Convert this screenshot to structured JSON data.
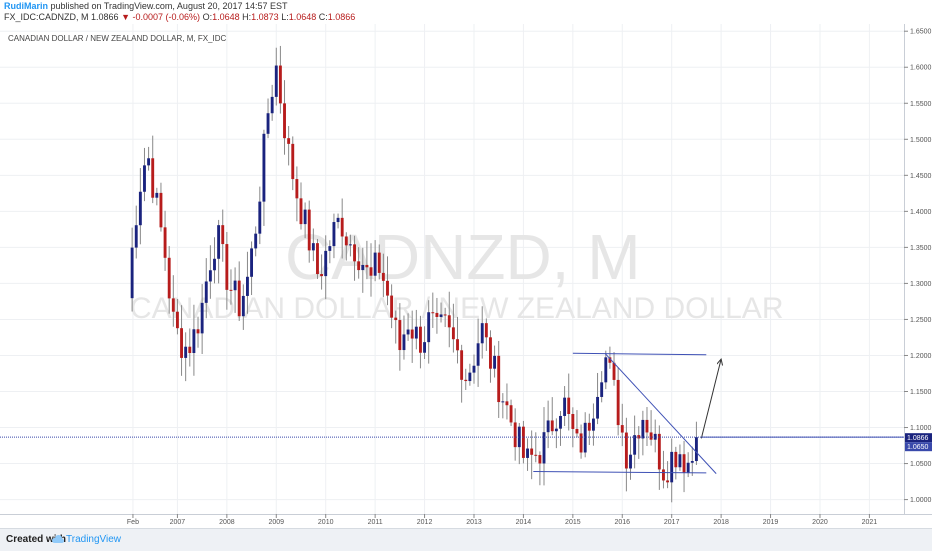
{
  "header": {
    "author": "RudiMarin",
    "published_text": "published on TradingView.com, August 20, 2017 14:57 EST",
    "symbol": "FX_IDC:CADNZD, M",
    "last": "1.0866",
    "change": "-0.0007 (-0.06%)",
    "ohlc_o_label": "O:",
    "ohlc_o": "1.0648",
    "ohlc_h_label": "H:",
    "ohlc_h": "1.0873",
    "ohlc_l_label": "L:",
    "ohlc_l": "1.0648",
    "ohlc_c_label": "C:",
    "ohlc_c": "1.0866"
  },
  "footer": {
    "created_with": "Created with",
    "brand": "TradingView"
  },
  "colors": {
    "up": "#1a237e",
    "down": "#b71c1c",
    "price_line": "#3949ab",
    "pattern": "#3f51b5",
    "grid": "#eef0f3"
  },
  "chart_data": {
    "type": "candlestick",
    "title": "CANADIAN DOLLAR / NEW ZEALAND DOLLAR, M, FX_IDC",
    "watermark_symbol": "CADNZD, M",
    "watermark_name": "CANADIAN DOLLAR / NEW ZEALAND DOLLAR",
    "ylim": [
      0.98,
      1.66
    ],
    "y_ticks": [
      "1.0000",
      "1.0500",
      "1.1000",
      "1.1500",
      "1.2000",
      "1.2500",
      "1.3000",
      "1.3500",
      "1.4000",
      "1.4500",
      "1.5000",
      "1.5500",
      "1.6000",
      "1.6500"
    ],
    "xlim": [
      2006.0,
      2021.7
    ],
    "x_ticks": [
      {
        "label": "Feb",
        "x": 2006.1
      },
      {
        "label": "2007",
        "x": 2007
      },
      {
        "label": "2008",
        "x": 2008
      },
      {
        "label": "2009",
        "x": 2009
      },
      {
        "label": "2010",
        "x": 2010
      },
      {
        "label": "2011",
        "x": 2011
      },
      {
        "label": "2012",
        "x": 2012
      },
      {
        "label": "2013",
        "x": 2013
      },
      {
        "label": "2014",
        "x": 2014
      },
      {
        "label": "2015",
        "x": 2015
      },
      {
        "label": "2016",
        "x": 2016
      },
      {
        "label": "2017",
        "x": 2017
      },
      {
        "label": "2018",
        "x": 2018
      },
      {
        "label": "2019",
        "x": 2019
      },
      {
        "label": "2020",
        "x": 2020
      },
      {
        "label": "2021",
        "x": 2021
      }
    ],
    "price_labels": [
      "1.0866",
      "1.0650"
    ],
    "last_price": 1.0866,
    "anchors": [
      [
        2006.0,
        1.28
      ],
      [
        2006.1,
        1.36
      ],
      [
        2006.2,
        1.42
      ],
      [
        2006.3,
        1.46
      ],
      [
        2006.4,
        1.48
      ],
      [
        2006.5,
        1.44
      ],
      [
        2006.6,
        1.4
      ],
      [
        2006.75,
        1.34
      ],
      [
        2006.9,
        1.25
      ],
      [
        2007.05,
        1.22
      ],
      [
        2007.2,
        1.21
      ],
      [
        2007.35,
        1.23
      ],
      [
        2007.5,
        1.27
      ],
      [
        2007.65,
        1.33
      ],
      [
        2007.8,
        1.37
      ],
      [
        2007.95,
        1.32
      ],
      [
        2008.1,
        1.29
      ],
      [
        2008.25,
        1.27
      ],
      [
        2008.4,
        1.3
      ],
      [
        2008.55,
        1.36
      ],
      [
        2008.7,
        1.45
      ],
      [
        2008.85,
        1.55
      ],
      [
        2009.0,
        1.6
      ],
      [
        2009.1,
        1.55
      ],
      [
        2009.25,
        1.48
      ],
      [
        2009.4,
        1.43
      ],
      [
        2009.55,
        1.39
      ],
      [
        2009.7,
        1.35
      ],
      [
        2009.85,
        1.31
      ],
      [
        2010.0,
        1.34
      ],
      [
        2010.15,
        1.37
      ],
      [
        2010.3,
        1.39
      ],
      [
        2010.45,
        1.36
      ],
      [
        2010.6,
        1.35
      ],
      [
        2010.75,
        1.33
      ],
      [
        2010.9,
        1.3
      ],
      [
        2011.05,
        1.33
      ],
      [
        2011.2,
        1.3
      ],
      [
        2011.35,
        1.25
      ],
      [
        2011.5,
        1.21
      ],
      [
        2011.65,
        1.25
      ],
      [
        2011.8,
        1.23
      ],
      [
        2011.95,
        1.22
      ],
      [
        2012.1,
        1.25
      ],
      [
        2012.25,
        1.23
      ],
      [
        2012.4,
        1.24
      ],
      [
        2012.55,
        1.22
      ],
      [
        2012.7,
        1.2
      ],
      [
        2012.85,
        1.17
      ],
      [
        2013.0,
        1.2
      ],
      [
        2013.15,
        1.24
      ],
      [
        2013.3,
        1.2
      ],
      [
        2013.45,
        1.17
      ],
      [
        2013.6,
        1.14
      ],
      [
        2013.75,
        1.11
      ],
      [
        2013.9,
        1.08
      ],
      [
        2014.05,
        1.05
      ],
      [
        2014.2,
        1.06
      ],
      [
        2014.35,
        1.07
      ],
      [
        2014.5,
        1.09
      ],
      [
        2014.65,
        1.12
      ],
      [
        2014.8,
        1.14
      ],
      [
        2014.95,
        1.1
      ],
      [
        2015.1,
        1.07
      ],
      [
        2015.25,
        1.09
      ],
      [
        2015.4,
        1.13
      ],
      [
        2015.55,
        1.18
      ],
      [
        2015.65,
        1.2
      ],
      [
        2015.8,
        1.16
      ],
      [
        2015.95,
        1.11
      ],
      [
        2016.1,
        1.06
      ],
      [
        2016.25,
        1.09
      ],
      [
        2016.4,
        1.12
      ],
      [
        2016.55,
        1.1
      ],
      [
        2016.7,
        1.07
      ],
      [
        2016.85,
        1.04
      ],
      [
        2017.0,
        1.06
      ],
      [
        2017.15,
        1.07
      ],
      [
        2017.3,
        1.05
      ],
      [
        2017.45,
        1.06
      ],
      [
        2017.55,
        1.0866
      ]
    ],
    "annotations": {
      "resistance_line": [
        [
          2015.0,
          1.203
        ],
        [
          2017.7,
          1.201
        ]
      ],
      "support_line": [
        [
          2014.2,
          1.039
        ],
        [
          2017.7,
          1.037
        ]
      ],
      "downtrend_line": [
        [
          2015.65,
          1.203
        ],
        [
          2017.9,
          1.036
        ]
      ],
      "projection_arrow": [
        [
          2017.6,
          1.085
        ],
        [
          2018.0,
          1.195
        ]
      ]
    }
  }
}
